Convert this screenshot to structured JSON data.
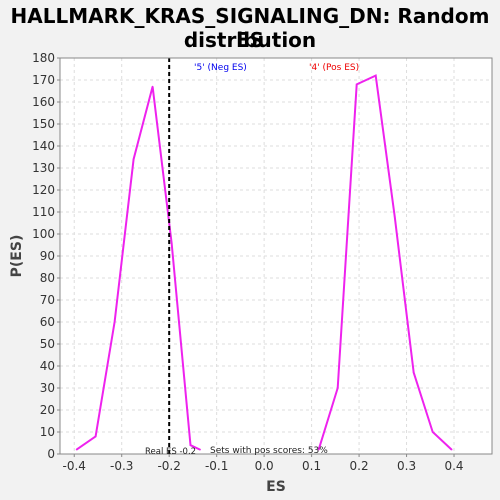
{
  "chart_data": {
    "type": "line",
    "title_line1": "HALLMARK_KRAS_SIGNALING_DN: Random ES",
    "title_line2": "distribution",
    "xlabel": "ES",
    "ylabel": "P(ES)",
    "xlim": [
      -0.43,
      0.48
    ],
    "ylim": [
      0,
      180
    ],
    "x_ticks": [
      -0.4,
      -0.3,
      -0.2,
      -0.1,
      0.0,
      0.1,
      0.2,
      0.3,
      0.4
    ],
    "x_tick_labels": [
      "-0.4",
      "-0.3",
      "-0.2",
      "-0.1",
      "0.0",
      "0.1",
      "0.2",
      "0.3",
      "0.4"
    ],
    "y_ticks": [
      0,
      10,
      20,
      30,
      40,
      50,
      60,
      70,
      80,
      90,
      100,
      110,
      120,
      130,
      140,
      150,
      160,
      170,
      180
    ],
    "grid": true,
    "series": [
      {
        "color": "#ee22ee",
        "x": [
          -0.395,
          -0.355,
          -0.315,
          -0.275,
          -0.235,
          -0.195,
          -0.155,
          -0.135
        ],
        "y": [
          2,
          8,
          60,
          134,
          167,
          96,
          4,
          2
        ]
      },
      {
        "color": "#ee22ee",
        "x": [
          0.115,
          0.155,
          0.195,
          0.235,
          0.275,
          0.315,
          0.355,
          0.395
        ],
        "y": [
          2,
          30,
          168,
          172,
          108,
          37,
          10,
          2
        ]
      }
    ],
    "real_es_line": {
      "x": -0.2,
      "color": "#000000",
      "label": "Real ES -0.2"
    },
    "annotations": {
      "neg_label": "'5' (Neg ES)",
      "neg_color": "#0000ee",
      "pos_label": "'4' (Pos ES)",
      "pos_color": "#ee0000",
      "pos_scores": "Sets with pos scores: 53%"
    }
  }
}
